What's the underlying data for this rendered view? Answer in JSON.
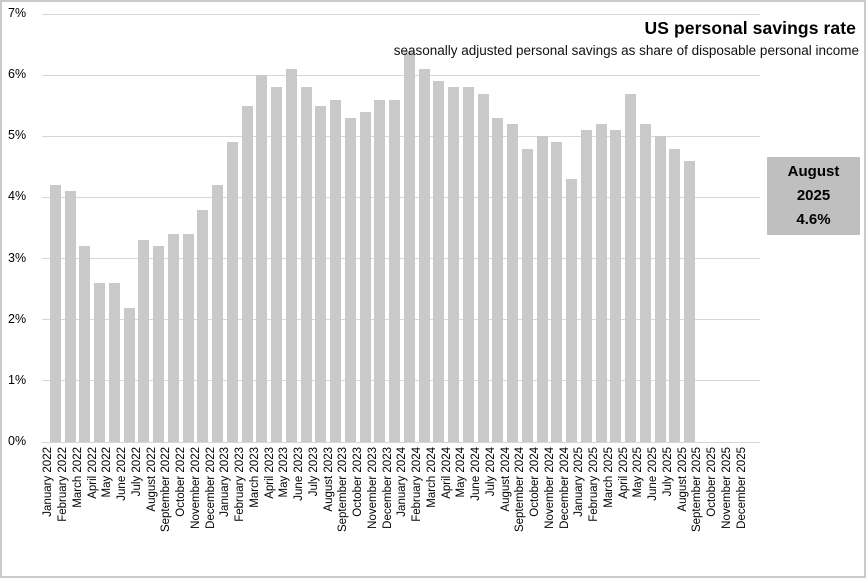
{
  "chart_data": {
    "type": "bar",
    "title": "US personal savings rate",
    "subtitle": "seasonally adjusted personal savings as share of disposable personal income",
    "xlabel": "",
    "ylabel": "",
    "ylim": [
      0,
      7
    ],
    "grid": true,
    "legend": "none",
    "bar_color": "#c9c9c9",
    "gridline_color": "#d6d6d6",
    "y_tick_labels": [
      "0%",
      "1%",
      "2%",
      "3%",
      "4%",
      "5%",
      "6%",
      "7%"
    ],
    "categories": [
      "January 2022",
      "February 2022",
      "March 2022",
      "April 2022",
      "May 2022",
      "June 2022",
      "July 2022",
      "August 2022",
      "September 2022",
      "October 2022",
      "November 2022",
      "December 2022",
      "January 2023",
      "February 2023",
      "March 2023",
      "April 2023",
      "May 2023",
      "June 2023",
      "July 2023",
      "August 2023",
      "September 2023",
      "October 2023",
      "November 2023",
      "December 2023",
      "January 2024",
      "February 2024",
      "March 2024",
      "April 2024",
      "May 2024",
      "June 2024",
      "July 2024",
      "August 2024",
      "September 2024",
      "October 2024",
      "November 2024",
      "December 2024",
      "January 2025",
      "February 2025",
      "March 2025",
      "April 2025",
      "May 2025",
      "June 2025",
      "July 2025",
      "August 2025",
      "September 2025",
      "October 2025",
      "November 2025",
      "December 2025"
    ],
    "values": [
      4.2,
      4.1,
      3.2,
      2.6,
      2.6,
      2.2,
      3.3,
      3.2,
      3.4,
      3.4,
      3.8,
      4.2,
      4.9,
      5.5,
      6.0,
      5.8,
      6.1,
      5.8,
      5.5,
      5.6,
      5.3,
      5.4,
      5.6,
      5.6,
      6.4,
      6.1,
      5.9,
      5.8,
      5.8,
      5.7,
      5.3,
      5.2,
      4.8,
      5.0,
      4.9,
      4.3,
      5.1,
      5.2,
      5.1,
      5.7,
      5.2,
      5.0,
      4.8,
      4.6,
      null,
      null,
      null,
      null
    ],
    "annotation": {
      "lines": [
        "August",
        "2025",
        "4.6%"
      ],
      "bg_color": "#bfbfbf"
    }
  }
}
